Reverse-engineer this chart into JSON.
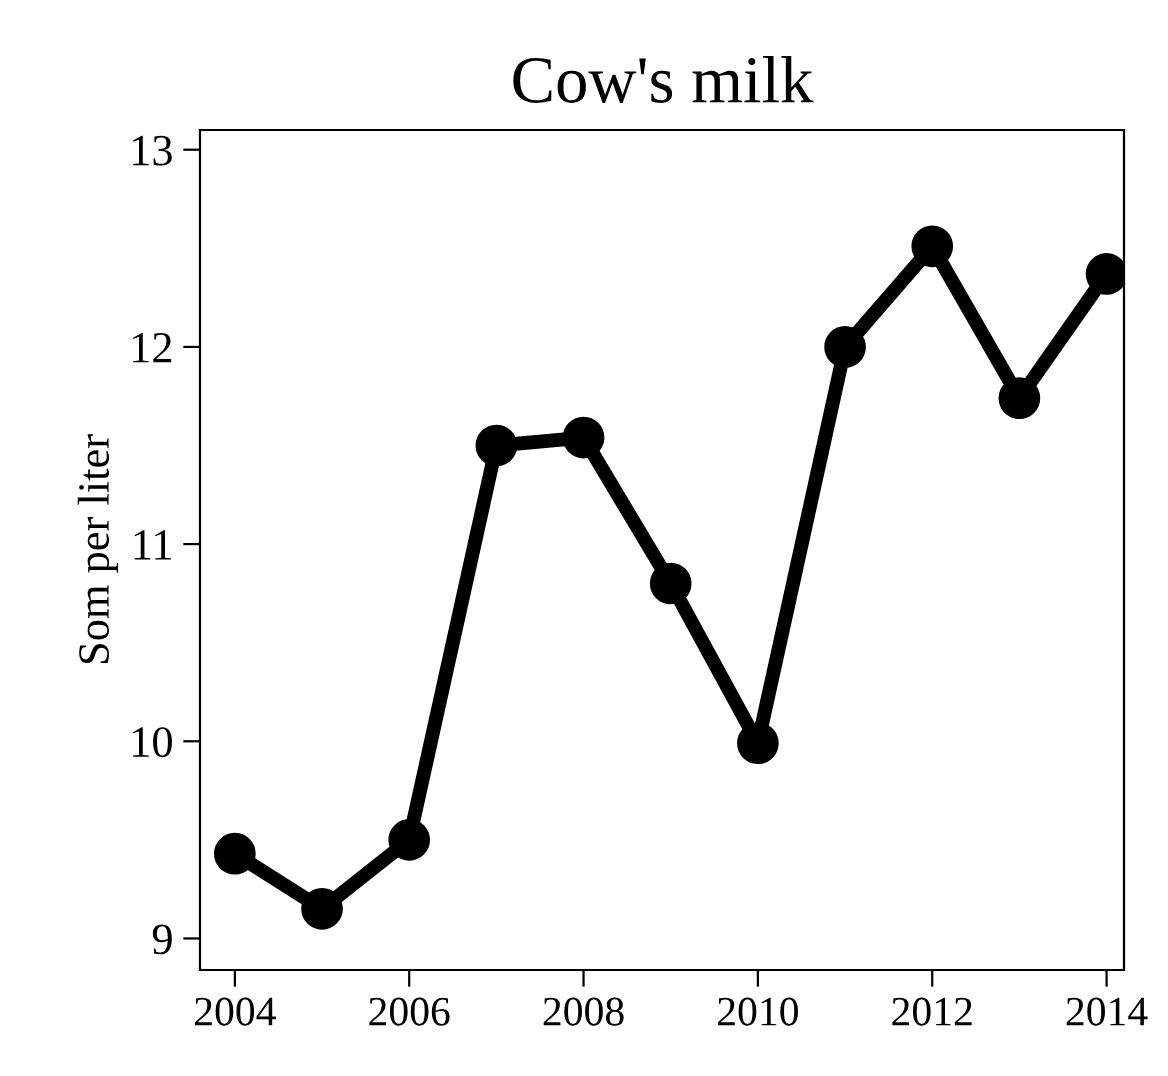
{
  "chart_data": {
    "type": "line",
    "title": "Cow's milk",
    "ylabel": "Som per liter",
    "x": [
      2004,
      2005,
      2006,
      2007,
      2008,
      2009,
      2010,
      2011,
      2012,
      2013,
      2014
    ],
    "series": [
      {
        "color": "#000000",
        "values": [
          9.43,
          9.15,
          9.5,
          11.5,
          11.54,
          10.8,
          9.99,
          12.0,
          12.51,
          11.74,
          12.37
        ]
      }
    ],
    "xlim": [
      2003.6,
      2014.2
    ],
    "xticks": [
      2004,
      2006,
      2008,
      2010,
      2012,
      2014
    ],
    "ylim": [
      8.84,
      13.1
    ],
    "yticks": [
      9,
      10,
      11,
      12,
      13
    ],
    "grid": false,
    "legend": false,
    "marker": "circle",
    "line_style": "solid"
  }
}
